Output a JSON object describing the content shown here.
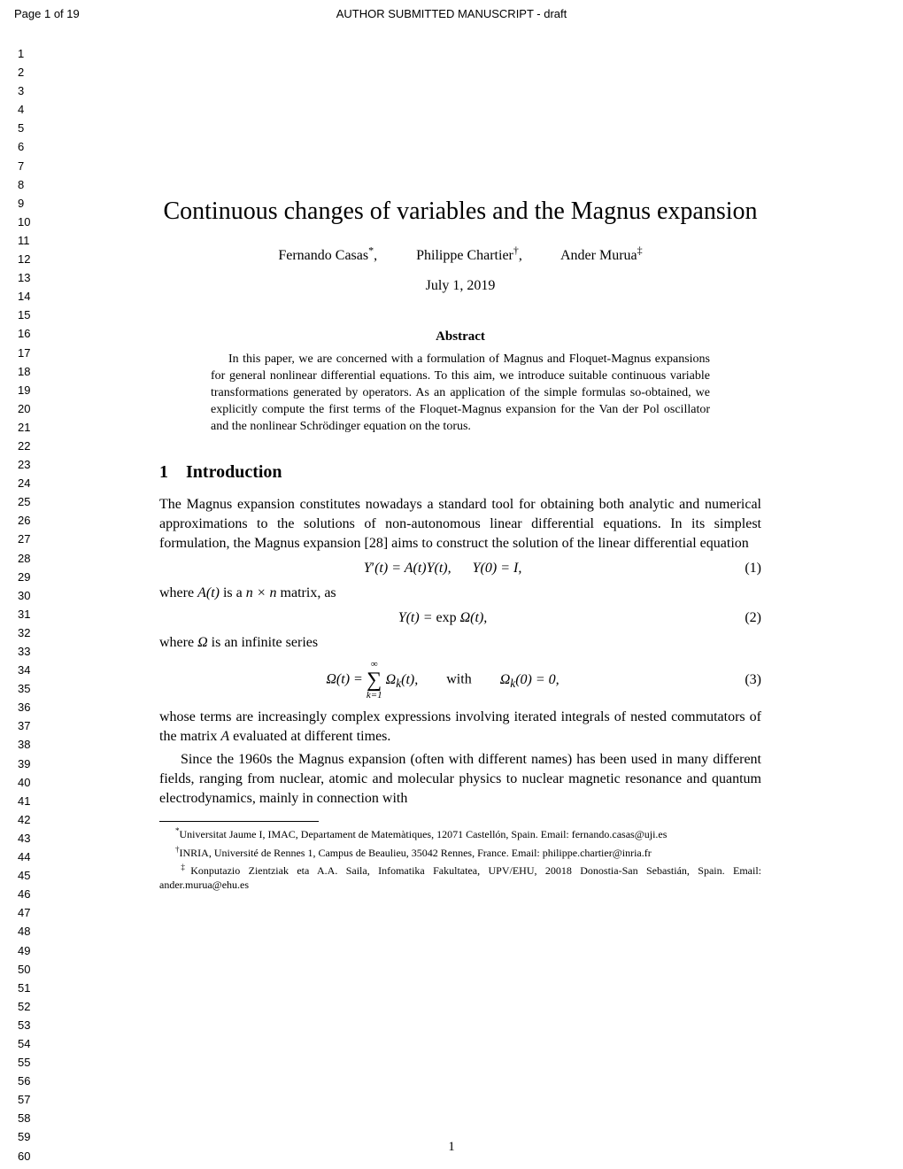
{
  "header": {
    "page_label": "Page 1 of 19",
    "manuscript_label": "AUTHOR SUBMITTED MANUSCRIPT - draft"
  },
  "line_numbers": {
    "start": 1,
    "end": 60
  },
  "title": "Continuous changes of variables and the Magnus expansion",
  "authors": [
    {
      "name": "Fernando Casas",
      "mark": "*",
      "punct": ","
    },
    {
      "name": "Philippe Chartier",
      "mark": "†",
      "punct": ","
    },
    {
      "name": "Ander Murua",
      "mark": "‡",
      "punct": ""
    }
  ],
  "date": "July 1, 2019",
  "abstract_heading": "Abstract",
  "abstract": "In this paper, we are concerned with a formulation of Magnus and Floquet-Magnus expansions for general nonlinear differential equations. To this aim, we introduce suitable continuous variable transformations generated by operators. As an application of the simple formulas so-obtained, we explicitly compute the first terms of the Floquet-Magnus expansion for the Van der Pol oscillator and the nonlinear Schrödinger equation on the torus.",
  "section1": {
    "num": "1",
    "title": "Introduction"
  },
  "para1": "The Magnus expansion constitutes nowadays a standard tool for obtaining both analytic and numerical approximations to the solutions of non-autonomous linear differential equations. In its simplest formulation, the Magnus expansion [28] aims to construct the solution of the linear differential equation",
  "eq1": {
    "tex": "Y′(t) = A(t)Y(t),  Y(0) = I,",
    "num": "(1)"
  },
  "para2_pre": "where ",
  "para2_math1": "A(t)",
  "para2_mid": " is a ",
  "para2_math2": "n × n",
  "para2_post": " matrix, as",
  "eq2": {
    "tex": "Y(t) = exp Ω(t),",
    "num": "(2)"
  },
  "para3_pre": "where ",
  "para3_math": "Ω",
  "para3_post": " is an infinite series",
  "eq3": {
    "lhs": "Ω(t) = ",
    "sum_top": "∞",
    "sum_bot": "k=1",
    "rhs1": " Ωₖ(t),",
    "with": "with",
    "rhs2": "Ωₖ(0) = 0,",
    "num": "(3)"
  },
  "para4_pre": "whose terms are increasingly complex expressions involving iterated integrals of nested commutators of the matrix ",
  "para4_math": "A",
  "para4_post": " evaluated at different times.",
  "para5": "Since the 1960s the Magnus expansion (often with different names) has been used in many different fields, ranging from nuclear, atomic and molecular physics to nuclear magnetic resonance and quantum electrodynamics, mainly in connection with",
  "footnotes": [
    {
      "mark": "*",
      "text": "Universitat Jaume I, IMAC, Departament de Matemàtiques, 12071 Castellón, Spain. Email: fernando.casas@uji.es"
    },
    {
      "mark": "†",
      "text": "INRIA, Université de Rennes 1, Campus de Beaulieu, 35042 Rennes, France.   Email: philippe.chartier@inria.fr"
    },
    {
      "mark": "‡",
      "text": "Konputazio Zientziak eta A.A. Saila, Infomatika Fakultatea, UPV/EHU, 20018 Donostia-San Sebastián, Spain. Email: ander.murua@ehu.es"
    }
  ],
  "page_number": "1",
  "colors": {
    "text": "#000000",
    "background": "#ffffff"
  }
}
